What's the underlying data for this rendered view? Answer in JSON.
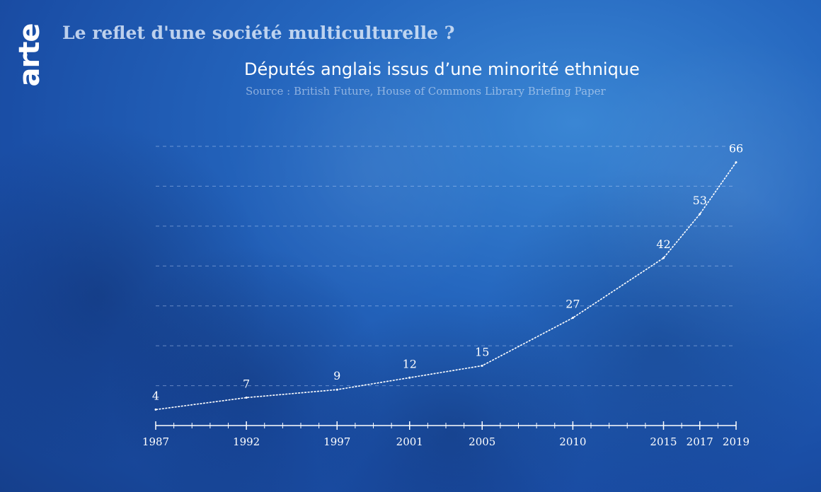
{
  "logo_text": "arte",
  "headline": "Le reflet d'une société multiculturelle ?",
  "chart_data": {
    "type": "line",
    "title": "Députés anglais issus d’une minorité ethnique",
    "subtitle": "Source : British Future, House of Commons Library Briefing Paper",
    "x": [
      1987,
      1992,
      1997,
      2001,
      2005,
      2010,
      2015,
      2017,
      2019
    ],
    "values": [
      4,
      7,
      9,
      12,
      15,
      27,
      42,
      53,
      66
    ],
    "xlim": [
      1987,
      2019
    ],
    "ylim": [
      0,
      70
    ],
    "grid": true,
    "line_color": "#ffffff"
  }
}
